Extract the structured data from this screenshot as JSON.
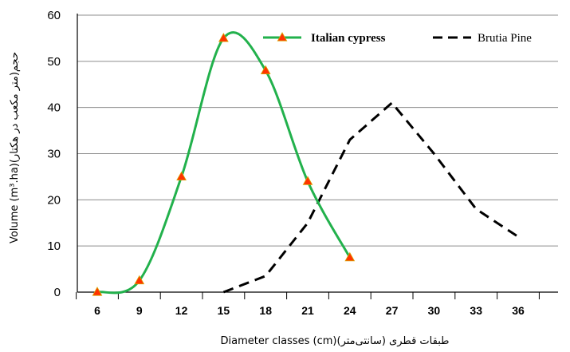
{
  "chart_data": {
    "type": "line",
    "xlabel": "Diameter classes (cm)(طبقات قطری (سانتی‌متر",
    "ylabel": "Volume (m³.ha)(حجم(متر مکعب در هکتار",
    "categories": [
      "6",
      "9",
      "12",
      "15",
      "18",
      "21",
      "24",
      "27",
      "30",
      "33",
      "36"
    ],
    "ylim": [
      0,
      60
    ],
    "yticks": [
      0,
      10,
      20,
      30,
      40,
      50,
      60
    ],
    "grid": "horizontal",
    "legend_position": "top-right",
    "series": [
      {
        "name": "Italian cypress",
        "color": "#22b14c",
        "line": "solid-smooth",
        "marker": "triangle",
        "marker_color": "#ff3300",
        "points": [
          {
            "x": 6,
            "y": 0
          },
          {
            "x": 9,
            "y": 2.5
          },
          {
            "x": 12,
            "y": 25
          },
          {
            "x": 15,
            "y": 55
          },
          {
            "x": 18,
            "y": 48
          },
          {
            "x": 21,
            "y": 24
          },
          {
            "x": 24,
            "y": 7.5
          }
        ]
      },
      {
        "name": "Brutia Pine",
        "color": "#000000",
        "line": "dashed",
        "points": [
          {
            "x": 15,
            "y": 0
          },
          {
            "x": 18,
            "y": 3.5
          },
          {
            "x": 21,
            "y": 15
          },
          {
            "x": 24,
            "y": 33
          },
          {
            "x": 27,
            "y": 41
          },
          {
            "x": 30,
            "y": 30
          },
          {
            "x": 33,
            "y": 18
          },
          {
            "x": 36,
            "y": 12
          }
        ]
      }
    ]
  }
}
